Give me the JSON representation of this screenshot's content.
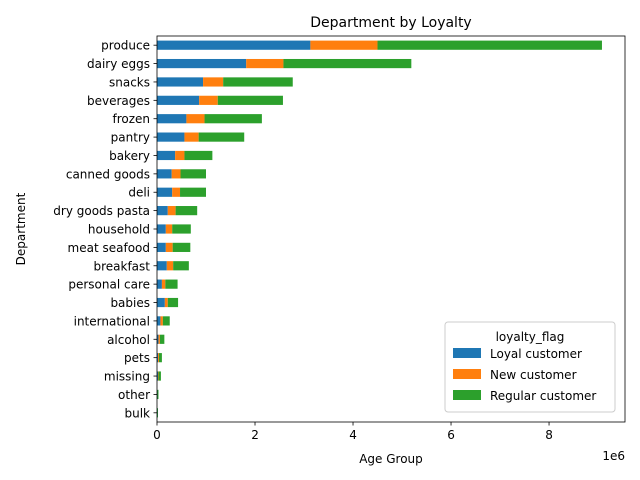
{
  "chart_data": {
    "type": "bar",
    "orientation": "horizontal",
    "stacked": true,
    "title": "Department by Loyalty",
    "xlabel": "Age Group",
    "ylabel": "Department",
    "x_offset_label": "1e6",
    "xlim": [
      0,
      9.55
    ],
    "x_ticks": [
      0,
      2,
      4,
      6,
      8
    ],
    "x_tick_labels": [
      "0",
      "2",
      "4",
      "6",
      "8"
    ],
    "grid": false,
    "legend": {
      "title": "loyalty_flag",
      "position": "lower-right"
    },
    "categories": [
      "produce",
      "dairy eggs",
      "snacks",
      "beverages",
      "frozen",
      "pantry",
      "bakery",
      "canned goods",
      "deli",
      "dry goods pasta",
      "household",
      "meat seafood",
      "breakfast",
      "personal care",
      "babies",
      "international",
      "alcohol",
      "pets",
      "missing",
      "other",
      "bulk"
    ],
    "series": [
      {
        "name": "Loyal customer",
        "color": "#1f77b4",
        "values": [
          3.13,
          1.82,
          0.94,
          0.86,
          0.6,
          0.56,
          0.37,
          0.3,
          0.31,
          0.22,
          0.18,
          0.18,
          0.2,
          0.1,
          0.16,
          0.07,
          0.03,
          0.02,
          0.02,
          0.01,
          0.01
        ]
      },
      {
        "name": "New customer",
        "color": "#ff7f0e",
        "values": [
          1.37,
          0.76,
          0.41,
          0.38,
          0.37,
          0.29,
          0.19,
          0.18,
          0.16,
          0.16,
          0.13,
          0.14,
          0.13,
          0.07,
          0.06,
          0.05,
          0.03,
          0.02,
          0.01,
          0.0,
          0.0
        ]
      },
      {
        "name": "Regular customer",
        "color": "#2ca02c",
        "values": [
          4.58,
          2.61,
          1.42,
          1.33,
          1.17,
          0.93,
          0.57,
          0.52,
          0.53,
          0.44,
          0.38,
          0.36,
          0.32,
          0.25,
          0.21,
          0.14,
          0.09,
          0.06,
          0.05,
          0.02,
          0.01
        ]
      }
    ]
  }
}
